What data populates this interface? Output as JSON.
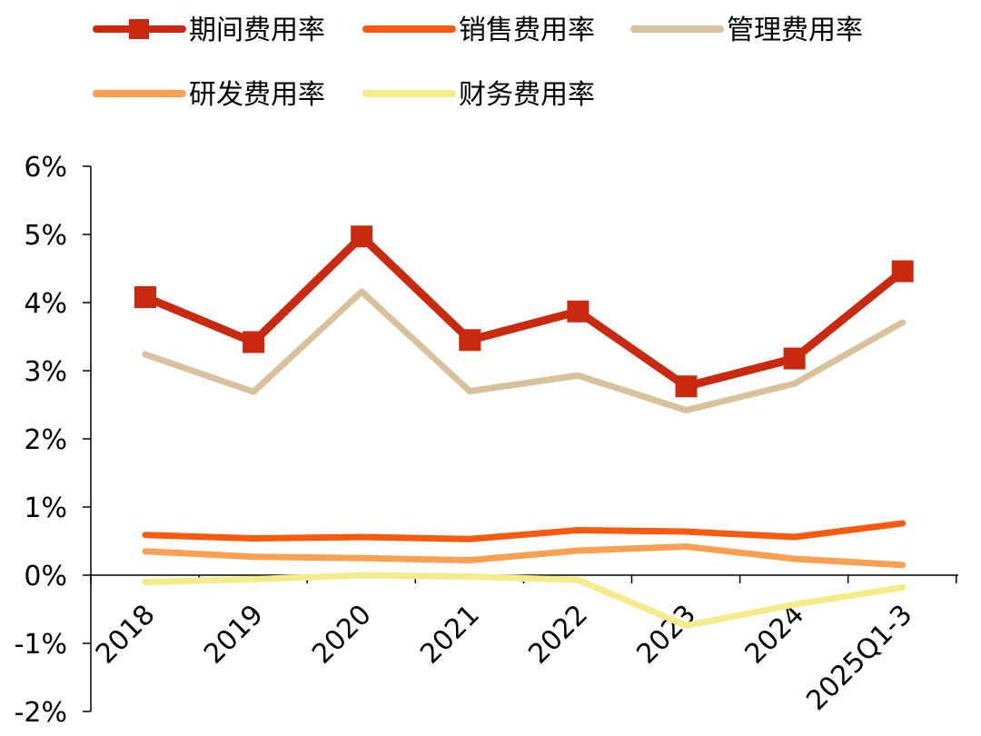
{
  "chart_data": {
    "type": "line",
    "title": "",
    "xlabel": "",
    "ylabel": "",
    "categories": [
      "2018",
      "2019",
      "2020",
      "2021",
      "2022",
      "2023",
      "2024",
      "2025Q1-3"
    ],
    "ylim": [
      -2,
      6
    ],
    "yticks": [
      "-2%",
      "-1%",
      "0%",
      "1%",
      "2%",
      "3%",
      "4%",
      "5%",
      "6%"
    ],
    "legend_position": "top",
    "series": [
      {
        "name": "期间费用率",
        "color": "#C8290F",
        "marker": "square",
        "values": [
          4.08,
          3.42,
          4.97,
          3.45,
          3.87,
          2.77,
          3.18,
          4.46
        ]
      },
      {
        "name": "销售费用率",
        "color": "#FA5A10",
        "marker": "none",
        "values": [
          0.59,
          0.54,
          0.56,
          0.53,
          0.66,
          0.64,
          0.56,
          0.76
        ]
      },
      {
        "name": "管理费用率",
        "color": "#D8C19B",
        "marker": "none",
        "values": [
          3.24,
          2.69,
          4.16,
          2.7,
          2.93,
          2.42,
          2.81,
          3.71
        ]
      },
      {
        "name": "研发费用率",
        "color": "#F9A052",
        "marker": "none",
        "values": [
          0.35,
          0.27,
          0.25,
          0.22,
          0.36,
          0.42,
          0.24,
          0.15
        ]
      },
      {
        "name": "财务费用率",
        "color": "#F5EB8A",
        "marker": "none",
        "values": [
          -0.1,
          -0.06,
          0.0,
          -0.02,
          -0.07,
          -0.74,
          -0.43,
          -0.18
        ]
      }
    ]
  }
}
